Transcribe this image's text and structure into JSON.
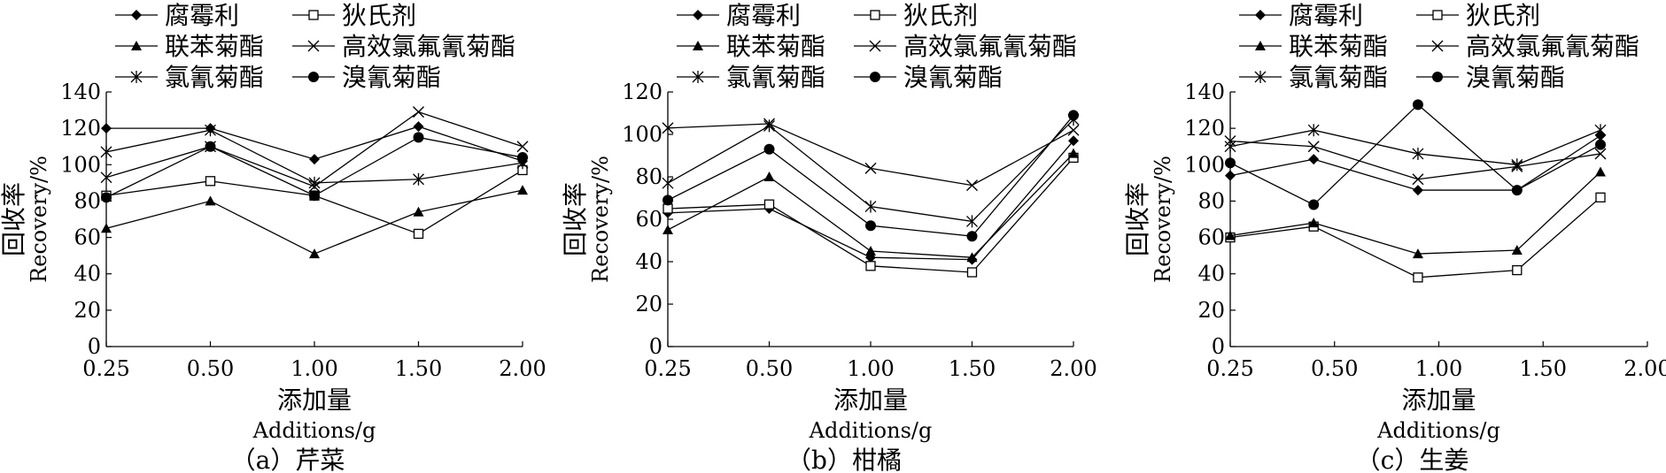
{
  "legend": {
    "entries": [
      "腐霉利",
      "狄氏剂",
      "联苯菊酯",
      "高效氯氟氰菊酯",
      "氯氰菊酯",
      "溴氰菊酯"
    ]
  },
  "axes": {
    "ylabel_cn": "回收率",
    "ylabel_en": "Recovery/%",
    "xlabel_cn": "添加量",
    "xlabel_en": "Additions/g",
    "xticks": [
      "0.25",
      "0.50",
      "1.00",
      "1.50",
      "2.00"
    ]
  },
  "chart_data": [
    {
      "type": "line",
      "caption": "（a）芹菜",
      "ylim": [
        0,
        140
      ],
      "yticks": [
        0,
        20,
        40,
        60,
        80,
        100,
        120,
        140
      ],
      "legend_position": "top",
      "grid": false,
      "series": [
        {
          "name": "腐霉利",
          "marker": "filled-diamond",
          "x": [
            0,
            1,
            2,
            3,
            4
          ],
          "y": [
            120,
            120,
            103,
            121,
            102
          ]
        },
        {
          "name": "狄氏剂",
          "marker": "open-square",
          "x": [
            0,
            1,
            2,
            3,
            4
          ],
          "y": [
            83,
            91,
            83,
            62,
            97
          ]
        },
        {
          "name": "联苯菊酯",
          "marker": "filled-triangle",
          "x": [
            0,
            1,
            2,
            3,
            4
          ],
          "y": [
            65,
            80,
            51,
            74,
            86
          ]
        },
        {
          "name": "高效氯氟氰菊酯",
          "marker": "x",
          "x": [
            0,
            1,
            2,
            3,
            4
          ],
          "y": [
            93,
            110,
            88,
            129,
            110
          ]
        },
        {
          "name": "氯氰菊酯",
          "marker": "asterisk",
          "x": [
            0,
            1,
            2,
            3,
            4
          ],
          "y": [
            107,
            119,
            90,
            92,
            101
          ]
        },
        {
          "name": "溴氰菊酯",
          "marker": "filled-circle",
          "x": [
            0,
            1,
            2,
            3,
            4
          ],
          "y": [
            82,
            110,
            83,
            115,
            104
          ]
        }
      ]
    },
    {
      "type": "line",
      "caption": "（b）柑橘",
      "ylim": [
        0,
        120
      ],
      "yticks": [
        0,
        20,
        40,
        60,
        80,
        100,
        120
      ],
      "legend_position": "top",
      "grid": false,
      "series": [
        {
          "name": "腐霉利",
          "marker": "filled-diamond",
          "x": [
            0,
            1,
            2,
            3,
            4
          ],
          "y": [
            63,
            65,
            42,
            41,
            97
          ]
        },
        {
          "name": "狄氏剂",
          "marker": "open-square",
          "x": [
            0,
            1,
            2,
            3,
            4
          ],
          "y": [
            65,
            67,
            38,
            35,
            89
          ]
        },
        {
          "name": "联苯菊酯",
          "marker": "filled-triangle",
          "x": [
            0,
            1,
            2,
            3,
            4
          ],
          "y": [
            55,
            80,
            45,
            42,
            91
          ]
        },
        {
          "name": "高效氯氟氰菊酯",
          "marker": "x",
          "x": [
            0,
            1,
            2,
            3,
            4
          ],
          "y": [
            103,
            105,
            84,
            76,
            102
          ]
        },
        {
          "name": "氯氰菊酯",
          "marker": "asterisk",
          "x": [
            0,
            1,
            2,
            3,
            4
          ],
          "y": [
            77,
            104,
            66,
            59,
            107
          ]
        },
        {
          "name": "溴氰菊酯",
          "marker": "filled-circle",
          "x": [
            0,
            1,
            2,
            3,
            4
          ],
          "y": [
            69,
            93,
            57,
            52,
            109
          ]
        }
      ]
    },
    {
      "type": "line",
      "caption": "（c）生姜",
      "ylim": [
        0,
        140
      ],
      "yticks": [
        0,
        20,
        40,
        60,
        80,
        100,
        120,
        140
      ],
      "legend_position": "top",
      "grid": false,
      "series": [
        {
          "name": "腐霉利",
          "marker": "filled-diamond",
          "x": [
            0,
            0.8,
            1.8,
            2.75,
            3.55
          ],
          "y": [
            94,
            103,
            86,
            86,
            116
          ]
        },
        {
          "name": "狄氏剂",
          "marker": "open-square",
          "x": [
            0,
            0.8,
            1.8,
            2.75,
            3.55
          ],
          "y": [
            60,
            66,
            38,
            42,
            82
          ]
        },
        {
          "name": "联苯菊酯",
          "marker": "filled-triangle",
          "x": [
            0,
            0.8,
            1.8,
            2.75,
            3.55
          ],
          "y": [
            61,
            68,
            51,
            53,
            96
          ]
        },
        {
          "name": "高效氯氟氰菊酯",
          "marker": "x",
          "x": [
            0,
            0.8,
            1.8,
            2.75,
            3.55
          ],
          "y": [
            113,
            110,
            92,
            99,
            106
          ]
        },
        {
          "name": "氯氰菊酯",
          "marker": "asterisk",
          "x": [
            0,
            0.8,
            1.8,
            2.75,
            3.55
          ],
          "y": [
            110,
            119,
            106,
            100,
            119
          ]
        },
        {
          "name": "溴氰菊酯",
          "marker": "filled-circle",
          "x": [
            0,
            0.8,
            1.8,
            2.75,
            3.55
          ],
          "y": [
            101,
            78,
            133,
            86,
            111
          ]
        }
      ]
    }
  ]
}
